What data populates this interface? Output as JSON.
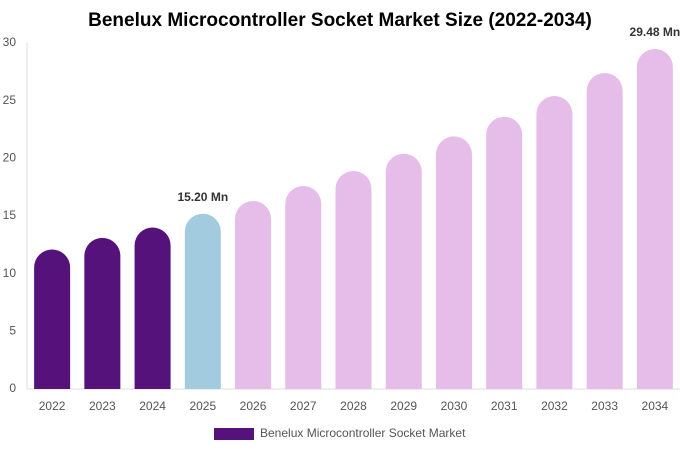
{
  "chart_data": {
    "type": "bar",
    "title": "Benelux Microcontroller Socket Market Size (2022-2034)",
    "categories": [
      "2022",
      "2023",
      "2024",
      "2025",
      "2026",
      "2027",
      "2028",
      "2029",
      "2030",
      "2031",
      "2032",
      "2033",
      "2034"
    ],
    "series": [
      {
        "name": "Benelux Microcontroller Socket Market",
        "color": "#54127a",
        "values": [
          12.1,
          13.1,
          14.0,
          15.2,
          16.3,
          17.6,
          18.9,
          20.4,
          21.9,
          23.6,
          25.4,
          27.4,
          29.48
        ],
        "value_labels": [
          null,
          null,
          null,
          "15.20 Mn",
          null,
          null,
          null,
          null,
          null,
          null,
          null,
          null,
          "29.48 Mn"
        ],
        "colors": [
          "#54127a",
          "#54127a",
          "#54127a",
          "#a3cbe0",
          "#e6bce9",
          "#e6bce9",
          "#e6bce9",
          "#e6bce9",
          "#e6bce9",
          "#e6bce9",
          "#e6bce9",
          "#e6bce9",
          "#e6bce9"
        ]
      }
    ],
    "ylim": [
      0,
      30
    ],
    "yticks": [
      0,
      5,
      10,
      15,
      20,
      25,
      30
    ],
    "grid": false
  }
}
